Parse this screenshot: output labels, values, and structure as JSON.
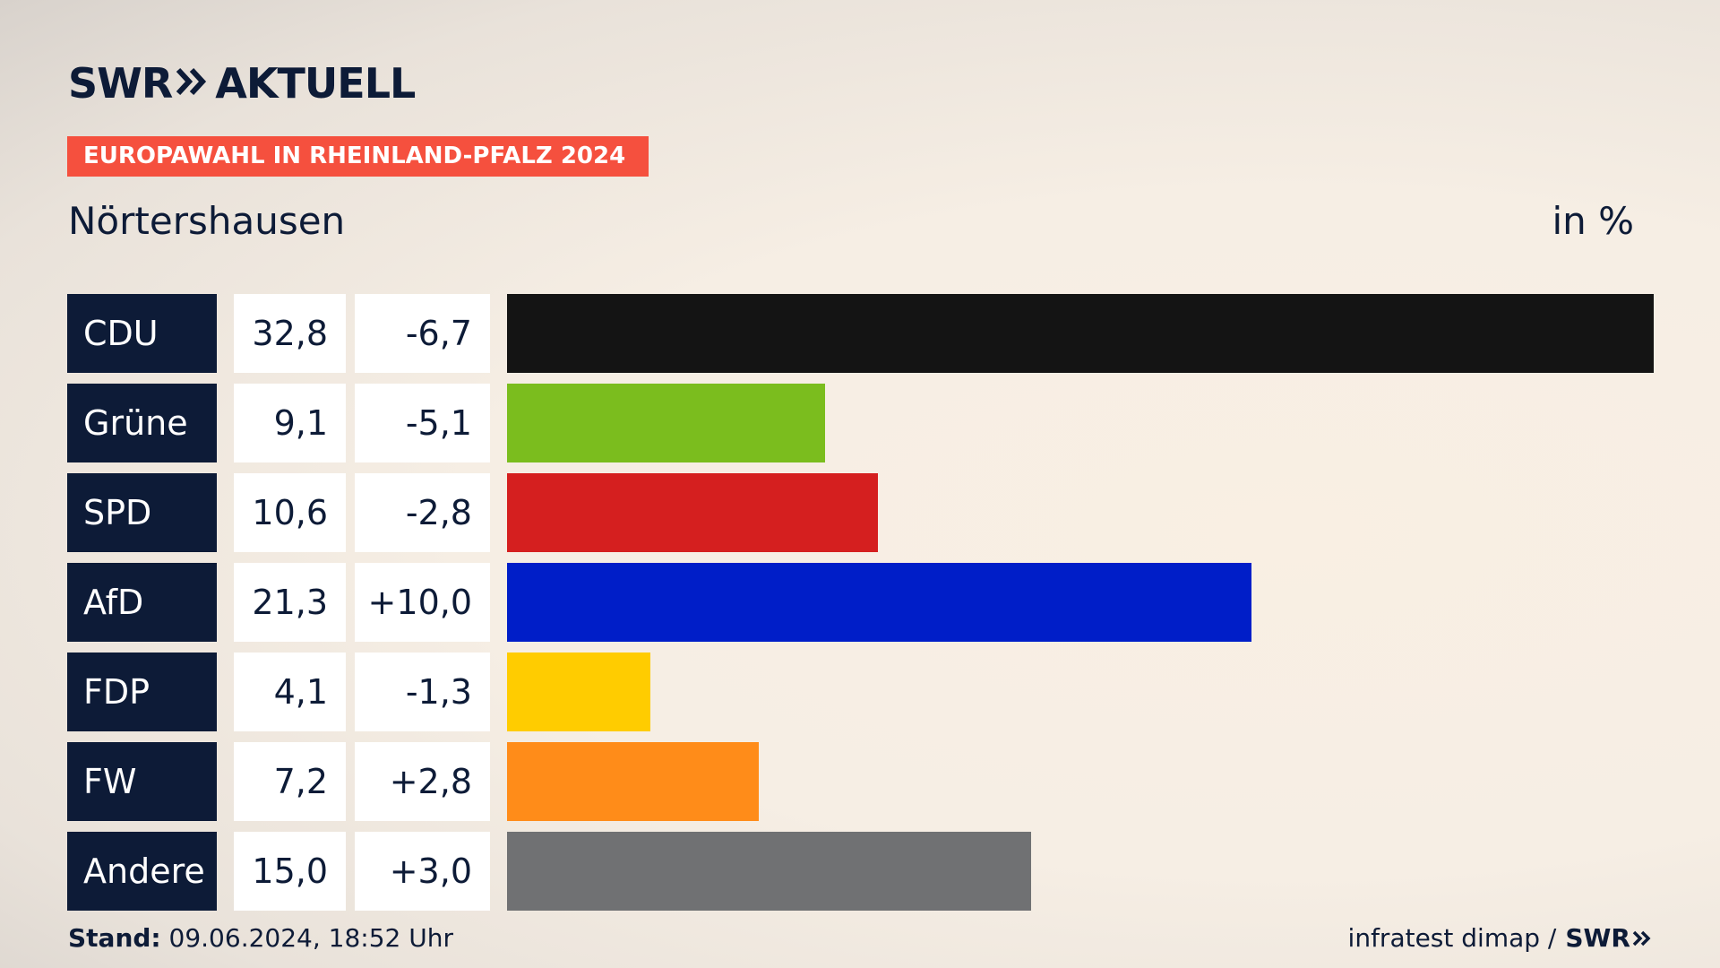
{
  "header": {
    "logo_swr": "SWR",
    "logo_aktuell": "AKTUELL",
    "tag": "EUROPAWAHL IN RHEINLAND-PFALZ 2024",
    "tag_color": "#f5503e"
  },
  "subtitle": "Nörtershausen",
  "unit": "in %",
  "chart_data": {
    "type": "bar",
    "orientation": "horizontal",
    "categories": [
      "CDU",
      "Grüne",
      "SPD",
      "AfD",
      "FDP",
      "FW",
      "Andere"
    ],
    "values": [
      32.8,
      9.1,
      10.6,
      21.3,
      4.1,
      7.2,
      15.0
    ],
    "value_labels": [
      "32,8",
      "9,1",
      "10,6",
      "21,3",
      "4,1",
      "7,2",
      "15,0"
    ],
    "changes": [
      "-6,7",
      "-5,1",
      "-2,8",
      "+10,0",
      "-1,3",
      "+2,8",
      "+3,0"
    ],
    "colors": [
      "#141414",
      "#7bbd1e",
      "#d51f1f",
      "#001ec8",
      "#ffcc00",
      "#ff8c19",
      "#707173"
    ],
    "xlim": [
      0,
      32.8
    ]
  },
  "footer": {
    "stand_label": "Stand:",
    "stand_value": "09.06.2024, 18:52 Uhr",
    "source": "infratest dimap /",
    "source_logo": "SWR"
  }
}
